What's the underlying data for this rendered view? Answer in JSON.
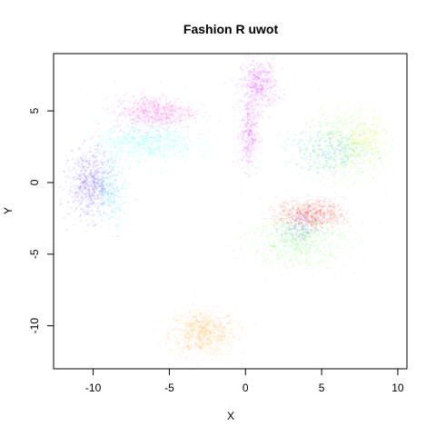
{
  "chart_data": {
    "type": "scatter",
    "title": "Fashion R uwot",
    "xlabel": "X",
    "ylabel": "Y",
    "xlim": [
      -12.6,
      10.6
    ],
    "ylim": [
      -13.0,
      9.0
    ],
    "xticks": [
      -10,
      -5,
      0,
      5,
      10
    ],
    "yticks": [
      -10,
      -5,
      0,
      5
    ],
    "grid": false,
    "legend": "none",
    "point_alpha": 0.08,
    "clusters": [
      {
        "color": "#FF9900",
        "center": [
          -2.8,
          -10.5
        ],
        "spread": [
          1.1,
          0.8
        ],
        "count": 800
      },
      {
        "color": "#CC00FF",
        "center": [
          0.9,
          6.8
        ],
        "spread": [
          0.6,
          0.9
        ],
        "count": 500
      },
      {
        "color": "#CC00FF",
        "center": [
          0.2,
          3.4
        ],
        "spread": [
          0.3,
          1.3
        ],
        "count": 350
      },
      {
        "color": "#FF00CC",
        "center": [
          -6.0,
          4.9
        ],
        "spread": [
          1.3,
          0.6
        ],
        "count": 650
      },
      {
        "color": "#00FFFF",
        "center": [
          -6.5,
          2.8
        ],
        "spread": [
          1.6,
          0.7
        ],
        "count": 650
      },
      {
        "color": "#3300FF",
        "center": [
          -10.2,
          -0.1
        ],
        "spread": [
          0.7,
          1.2
        ],
        "count": 650
      },
      {
        "color": "#00CCFF",
        "center": [
          -8.8,
          -0.5
        ],
        "spread": [
          0.5,
          1.1
        ],
        "count": 300
      },
      {
        "color": "#66FF33",
        "center": [
          6.5,
          2.6
        ],
        "spread": [
          1.5,
          1.4
        ],
        "count": 750
      },
      {
        "color": "#FFEE00",
        "center": [
          7.8,
          2.8
        ],
        "spread": [
          0.8,
          0.9
        ],
        "count": 300
      },
      {
        "color": "#0099CC",
        "center": [
          5.6,
          2.2
        ],
        "spread": [
          1.5,
          0.8
        ],
        "count": 400
      },
      {
        "color": "#33FF00",
        "center": [
          3.5,
          -4.0
        ],
        "spread": [
          1.6,
          1.0
        ],
        "count": 700
      },
      {
        "color": "#FF0000",
        "center": [
          4.3,
          -2.2
        ],
        "spread": [
          1.1,
          0.5
        ],
        "count": 650
      },
      {
        "color": "#3366FF",
        "center": [
          3.5,
          -3.3
        ],
        "spread": [
          0.6,
          0.6
        ],
        "count": 200
      }
    ]
  }
}
